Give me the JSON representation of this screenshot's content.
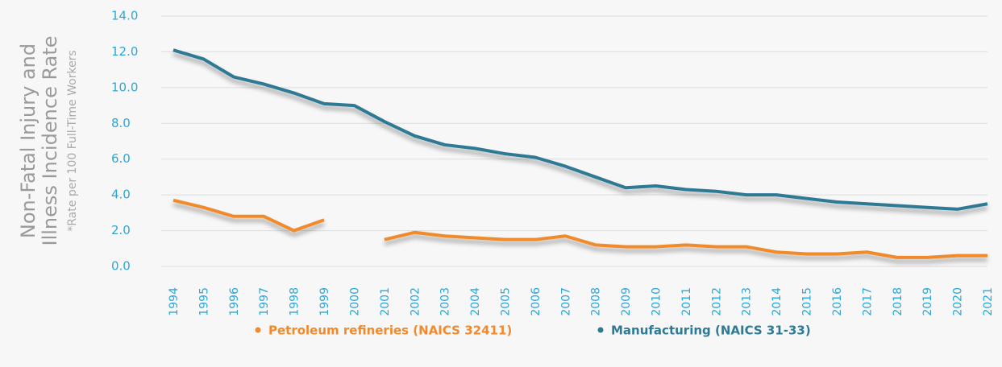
{
  "chart_data": {
    "type": "line",
    "ylabel_lines": [
      "Non-Fatal Injury and",
      "Illness Incidence Rate"
    ],
    "ylabel_note": "*Rate per 100 Full-Time Workers",
    "categories": [
      "1994",
      "1995",
      "1996",
      "1997",
      "1998",
      "1999",
      "2000",
      "2001",
      "2002",
      "2003",
      "2004",
      "2005",
      "2006",
      "2007",
      "2008",
      "2009",
      "2010",
      "2011",
      "2012",
      "2013",
      "2014",
      "2015",
      "2016",
      "2017",
      "2018",
      "2019",
      "2020",
      "2021"
    ],
    "series": [
      {
        "name": "Petroleum refineries (NAICS 32411)",
        "color": "#f08a2c",
        "values": [
          3.7,
          3.3,
          2.8,
          2.8,
          2.0,
          2.6,
          null,
          1.5,
          1.9,
          1.7,
          1.6,
          1.5,
          1.5,
          1.7,
          1.2,
          1.1,
          1.1,
          1.2,
          1.1,
          1.1,
          0.8,
          0.7,
          0.7,
          0.8,
          0.5,
          0.5,
          0.6,
          0.6
        ]
      },
      {
        "name": "Manufacturing (NAICS 31-33)",
        "color": "#2e7a95",
        "values": [
          12.1,
          11.6,
          10.6,
          10.2,
          9.7,
          9.1,
          9.0,
          8.1,
          7.3,
          6.8,
          6.6,
          6.3,
          6.1,
          5.6,
          5.0,
          4.4,
          4.5,
          4.3,
          4.2,
          4.0,
          4.0,
          3.8,
          3.6,
          3.5,
          3.4,
          3.3,
          3.2,
          3.5
        ]
      }
    ],
    "ylim": [
      0,
      14
    ],
    "yticks": [
      {
        "value": 0,
        "label": "0.0"
      },
      {
        "value": 2,
        "label": "2.0"
      },
      {
        "value": 4,
        "label": "4.0"
      },
      {
        "value": 6,
        "label": "6.0"
      },
      {
        "value": 8,
        "label": "8.0"
      },
      {
        "value": 10,
        "label": "10.0"
      },
      {
        "value": 12,
        "label": "12.0"
      },
      {
        "value": 14,
        "label": "14.0"
      }
    ],
    "grid": true,
    "tick_color": "#2aa8d8"
  }
}
